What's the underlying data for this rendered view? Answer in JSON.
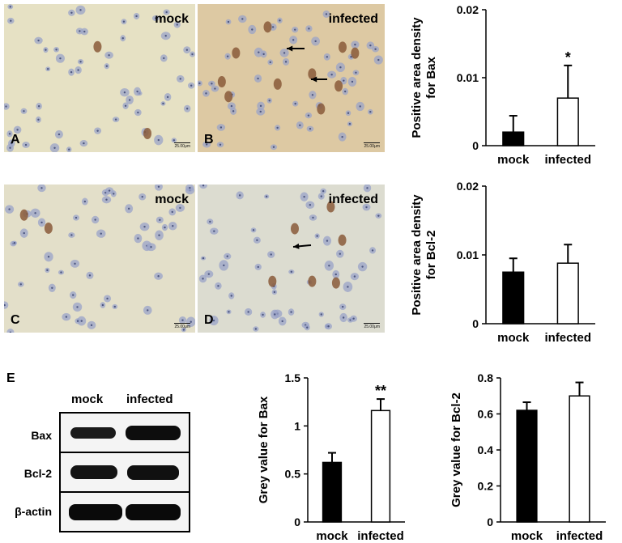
{
  "micrographs": [
    {
      "label": "A",
      "condition": "mock",
      "scale": "25.00μm",
      "tint": "#e6e1c4",
      "dark": 2
    },
    {
      "label": "B",
      "condition": "infected",
      "scale": "25.00μm",
      "tint": "#ddc9a3",
      "dark": 10
    },
    {
      "label": "C",
      "condition": "mock",
      "scale": "25.00μm",
      "tint": "#e3dfc9",
      "dark": 2
    },
    {
      "label": "D",
      "condition": "infected",
      "scale": "25.00μm",
      "tint": "#dcdcd0",
      "dark": 6
    }
  ],
  "blot": {
    "panel_label": "E",
    "columns": [
      "mock",
      "infected"
    ],
    "rows": [
      "Bax",
      "Bcl-2",
      "β-actin"
    ]
  },
  "chart_data": [
    {
      "type": "bar",
      "categories": [
        "mock",
        "infected"
      ],
      "values": [
        0.002,
        0.007
      ],
      "errors": [
        0.0024,
        0.0048
      ],
      "ylabel": "Positive area density for Bax",
      "ylim": [
        0,
        0.02
      ],
      "yticks": [
        0,
        0.01,
        0.02
      ],
      "ytick_labels": [
        "0",
        "0.01",
        "0.02"
      ],
      "significance": [
        "",
        "*"
      ],
      "colors": [
        "#000000",
        "#ffffff"
      ]
    },
    {
      "type": "bar",
      "categories": [
        "mock",
        "infected"
      ],
      "values": [
        0.0075,
        0.0088
      ],
      "errors": [
        0.002,
        0.0027
      ],
      "ylabel": "Positive area density for Bcl-2",
      "ylim": [
        0,
        0.02
      ],
      "yticks": [
        0,
        0.01,
        0.02
      ],
      "ytick_labels": [
        "0",
        "0.01",
        "0.02"
      ],
      "significance": [
        "",
        ""
      ],
      "colors": [
        "#000000",
        "#ffffff"
      ]
    },
    {
      "type": "bar",
      "categories": [
        "mock",
        "infected"
      ],
      "values": [
        0.62,
        1.16
      ],
      "errors": [
        0.1,
        0.12
      ],
      "ylabel": "Grey value for Bax",
      "ylim": [
        0,
        1.5
      ],
      "yticks": [
        0,
        0.5,
        1,
        1.5
      ],
      "ytick_labels": [
        "0",
        "0.5",
        "1",
        "1.5"
      ],
      "significance": [
        "",
        "**"
      ],
      "colors": [
        "#000000",
        "#ffffff"
      ]
    },
    {
      "type": "bar",
      "categories": [
        "mock",
        "infected"
      ],
      "values": [
        0.62,
        0.7
      ],
      "errors": [
        0.045,
        0.075
      ],
      "ylabel": "Grey value for Bcl-2",
      "ylim": [
        0,
        0.8
      ],
      "yticks": [
        0,
        0.2,
        0.4,
        0.6,
        0.8
      ],
      "ytick_labels": [
        "0",
        "0.2",
        "0.4",
        "0.6",
        "0.8"
      ],
      "significance": [
        "",
        ""
      ],
      "colors": [
        "#000000",
        "#ffffff"
      ]
    }
  ]
}
